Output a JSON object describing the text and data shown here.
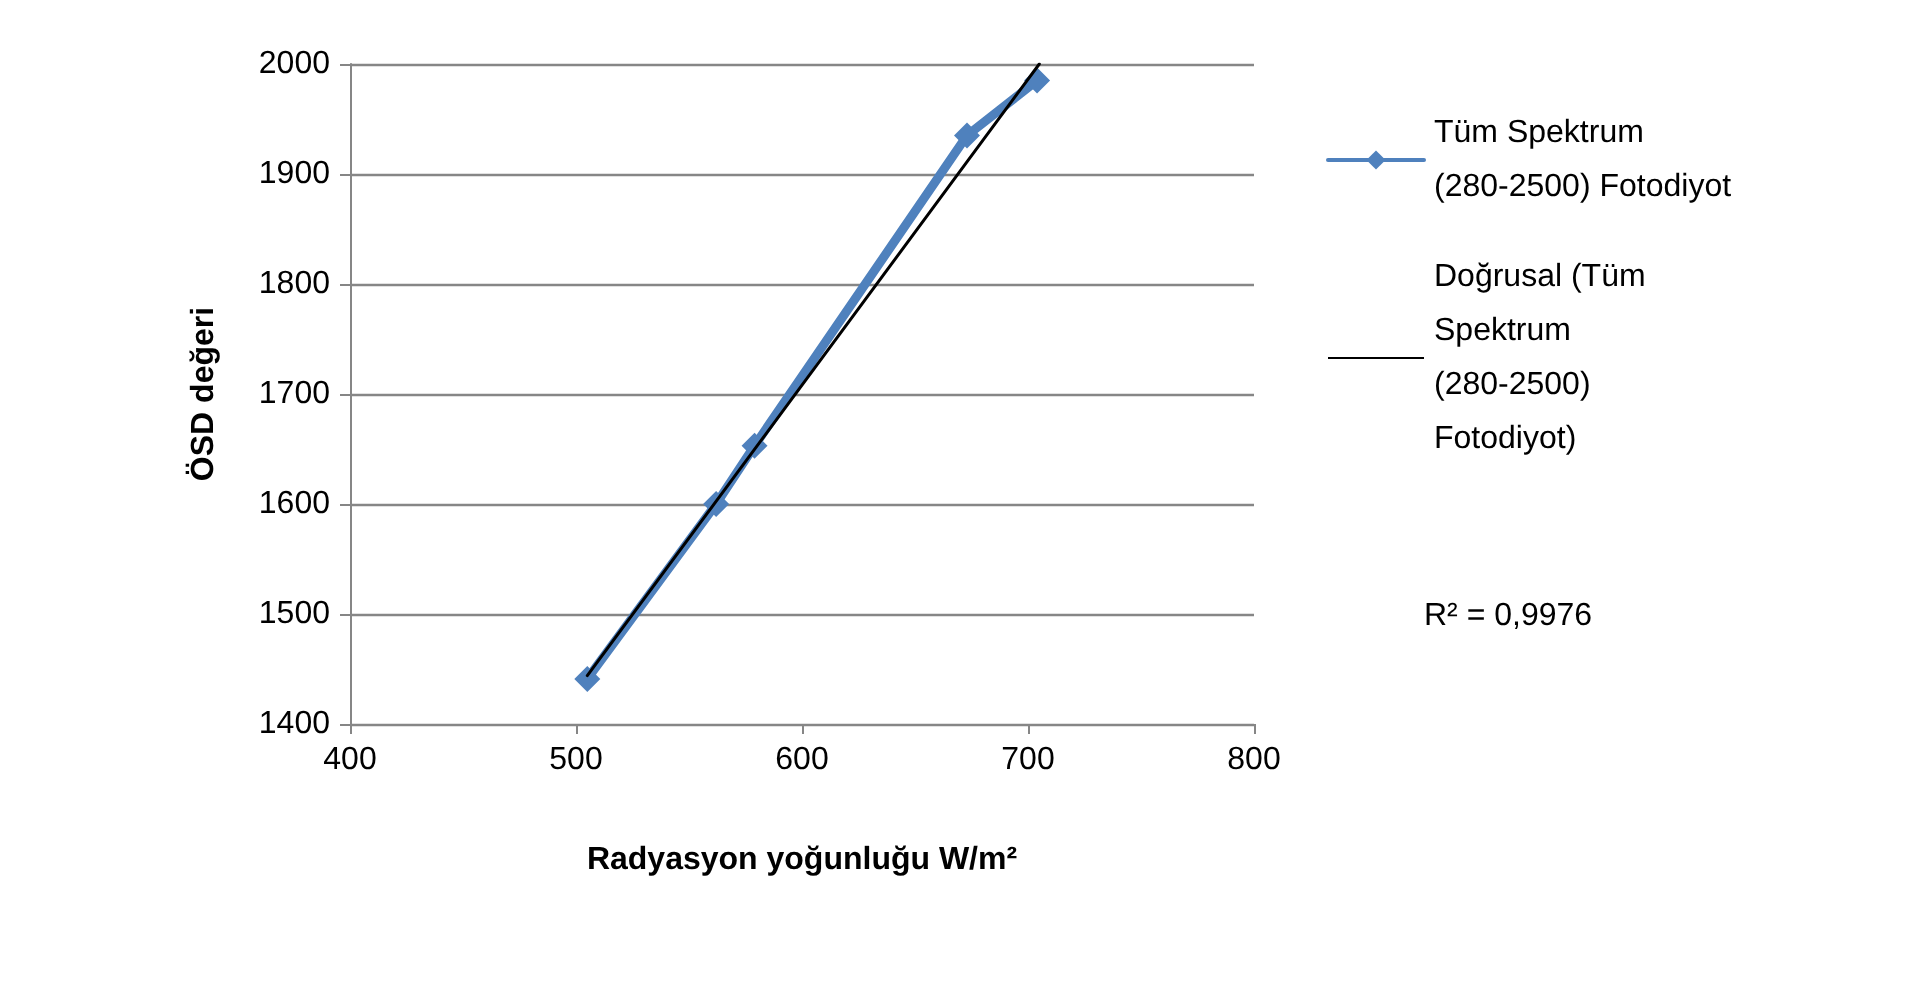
{
  "chart_data": {
    "type": "line",
    "xlabel": "Radyasyon yoğunluğu W/m²",
    "ylabel": "ÖSD değeri",
    "xlim": [
      400,
      800
    ],
    "xticks": [
      400,
      500,
      600,
      700,
      800
    ],
    "ylim": [
      1400,
      2000
    ],
    "yticks": [
      1400,
      1500,
      1600,
      1700,
      1800,
      1900,
      2000
    ],
    "grid": "y",
    "legend": "right",
    "marker": "diamond",
    "series": [
      {
        "name": "Tüm Spektrum (280-2500) Fotodiyot",
        "color": "#4f81bd",
        "x": [
          505,
          562,
          579,
          673,
          704
        ],
        "values": [
          1441,
          1600,
          1653,
          1935,
          1985
        ]
      },
      {
        "name": "Doğrusal (Tüm Spektrum (280-2500) Fotodiyot)",
        "color": "#000000",
        "marker": "none",
        "x": [
          505,
          705
        ],
        "values": [
          1444,
          2000
        ]
      }
    ],
    "annotations": [
      "R² = 0,9976"
    ]
  }
}
